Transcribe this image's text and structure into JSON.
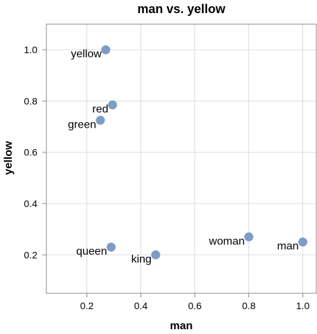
{
  "chart_data": {
    "type": "scatter",
    "title": "man vs. yellow",
    "xlabel": "man",
    "ylabel": "yellow",
    "xlim": [
      0.05,
      1.05
    ],
    "ylim": [
      0.05,
      1.1
    ],
    "x_ticks": [
      "0.2",
      "0.4",
      "0.6",
      "0.8",
      "1.0"
    ],
    "y_ticks": [
      "0.2",
      "0.4",
      "0.6",
      "0.8",
      "1.0"
    ],
    "grid": true,
    "point_color": "#7b9dc6",
    "points": [
      {
        "label": "yellow",
        "x": 0.27,
        "y": 1.0
      },
      {
        "label": "red",
        "x": 0.295,
        "y": 0.785
      },
      {
        "label": "green",
        "x": 0.25,
        "y": 0.725
      },
      {
        "label": "queen",
        "x": 0.29,
        "y": 0.23
      },
      {
        "label": "king",
        "x": 0.455,
        "y": 0.2
      },
      {
        "label": "woman",
        "x": 0.8,
        "y": 0.27
      },
      {
        "label": "man",
        "x": 1.0,
        "y": 0.25
      }
    ]
  }
}
